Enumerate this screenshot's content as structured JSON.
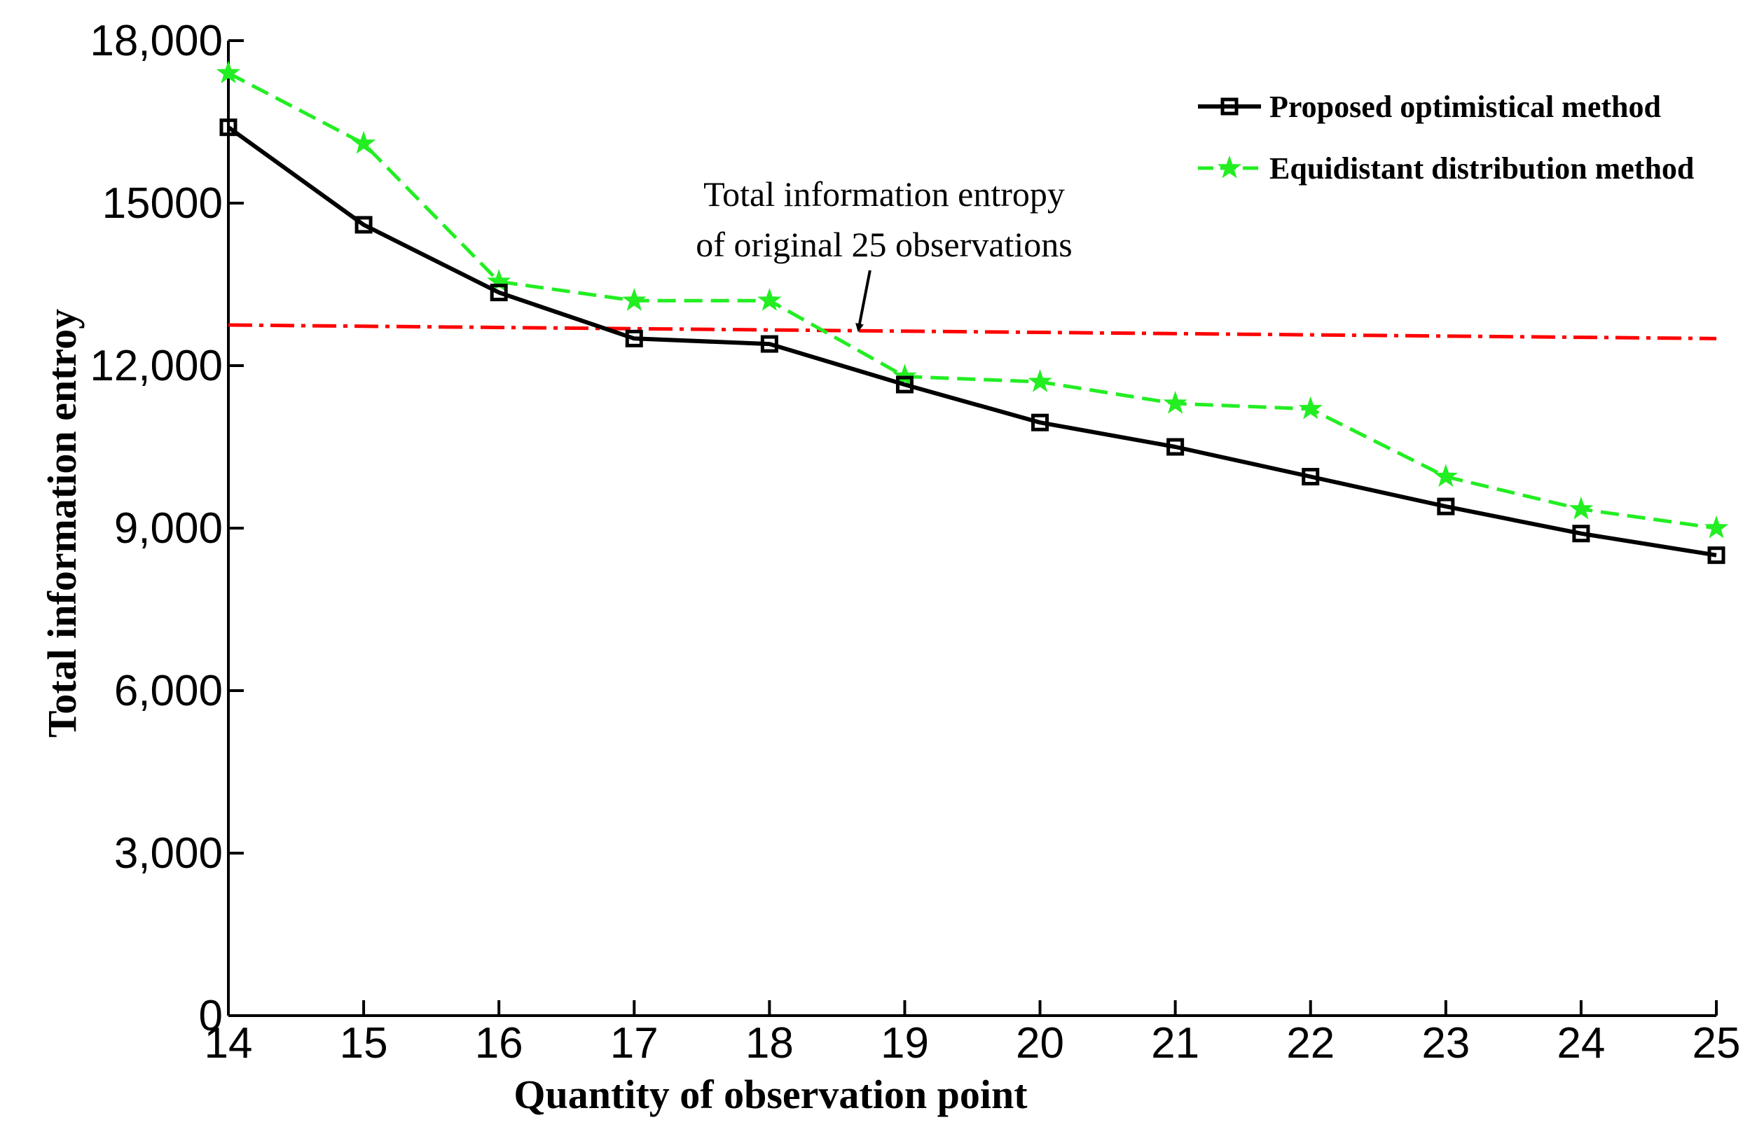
{
  "chart_data": {
    "type": "line",
    "title": "",
    "xlabel": "Quantity of observation point",
    "ylabel": "Total information entroy",
    "x": [
      14,
      15,
      16,
      17,
      18,
      19,
      20,
      21,
      22,
      23,
      24,
      25
    ],
    "xlim": [
      14,
      25
    ],
    "ylim": [
      0,
      18000
    ],
    "x_ticks": [
      "14",
      "15",
      "16",
      "17",
      "18",
      "19",
      "20",
      "21",
      "22",
      "23",
      "24",
      "25"
    ],
    "y_ticks": [
      {
        "value": 0,
        "label": "0"
      },
      {
        "value": 3000,
        "label": "3,000"
      },
      {
        "value": 6000,
        "label": "6,000"
      },
      {
        "value": 9000,
        "label": "9,000"
      },
      {
        "value": 12000,
        "label": "12,000"
      },
      {
        "value": 15000,
        "label": "15000"
      },
      {
        "value": 18000,
        "label": "18,000"
      }
    ],
    "grid": false,
    "legend_position": "top-right",
    "series": [
      {
        "name": "Proposed optimistical method",
        "color": "#000000",
        "style": "solid",
        "marker": "square",
        "values": [
          16400,
          14600,
          13350,
          12500,
          12400,
          11650,
          10950,
          10500,
          9950,
          9400,
          8900,
          8500
        ]
      },
      {
        "name": "Equidistant distribution method",
        "color": "#22ee22",
        "style": "dashed",
        "marker": "star",
        "values": [
          17400,
          16100,
          13550,
          13200,
          13200,
          11800,
          11700,
          11300,
          11200,
          9950,
          9350,
          9000
        ]
      }
    ],
    "reference_line": {
      "color": "#ff0000",
      "style": "dash-dot",
      "values": [
        12750,
        12500
      ]
    },
    "annotation": {
      "lines": [
        "Total information entropy",
        "of original 25 observations"
      ],
      "arrow_x": 18.65,
      "arrow_y": 12620
    }
  }
}
